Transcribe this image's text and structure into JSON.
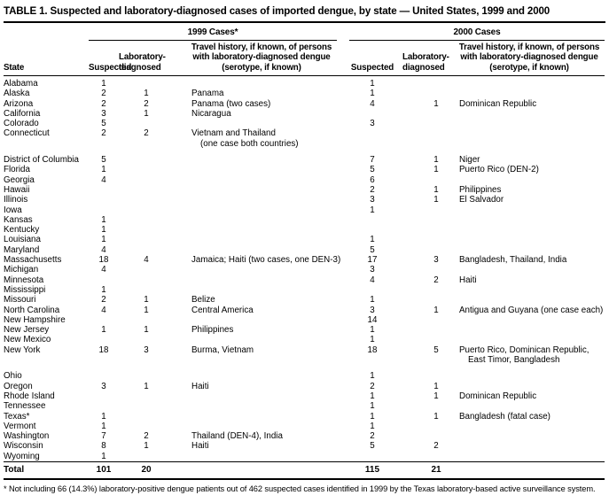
{
  "title": "TABLE 1. Suspected and laboratory-diagnosed cases of imported dengue, by state — United States, 1999 and 2000",
  "table": {
    "group_1999": "1999 Cases*",
    "group_2000": "2000 Cases",
    "col_state": "State",
    "col_suspected": "Suspected",
    "col_lab": "Laboratory-\ndiagnosed",
    "col_travel": "Travel history, if known, of persons\nwith laboratory-diagnosed dengue\n(serotype, if known)",
    "rows": [
      {
        "state": "Alabama",
        "s99": "1",
        "l99": "",
        "t99": "",
        "s00": "1",
        "l00": "",
        "t00": ""
      },
      {
        "state": "Alaska",
        "s99": "2",
        "l99": "1",
        "t99": "Panama",
        "s00": "1",
        "l00": "",
        "t00": ""
      },
      {
        "state": "Arizona",
        "s99": "2",
        "l99": "2",
        "t99": "Panama (two cases)",
        "s00": "4",
        "l00": "1",
        "t00": "Dominican Republic"
      },
      {
        "state": "California",
        "s99": "3",
        "l99": "1",
        "t99": "Nicaragua",
        "s00": "",
        "l00": "",
        "t00": ""
      },
      {
        "state": "Colorado",
        "s99": "5",
        "l99": "",
        "t99": "",
        "s00": "3",
        "l00": "",
        "t00": ""
      },
      {
        "state": "Connecticut",
        "s99": "2",
        "l99": "2",
        "t99": "Vietnam and Thailand\n(one case both countries)",
        "s00": "",
        "l00": "",
        "t00": ""
      },
      {
        "state": "District of Columbia",
        "s99": "5",
        "l99": "",
        "t99": "",
        "s00": "7",
        "l00": "1",
        "t00": "Niger"
      },
      {
        "state": "Florida",
        "s99": "1",
        "l99": "",
        "t99": "",
        "s00": "5",
        "l00": "1",
        "t00": "Puerto Rico (DEN-2)"
      },
      {
        "state": "Georgia",
        "s99": "4",
        "l99": "",
        "t99": "",
        "s00": "6",
        "l00": "",
        "t00": ""
      },
      {
        "state": "Hawaii",
        "s99": "",
        "l99": "",
        "t99": "",
        "s00": "2",
        "l00": "1",
        "t00": "Philippines"
      },
      {
        "state": "Illinois",
        "s99": "",
        "l99": "",
        "t99": "",
        "s00": "3",
        "l00": "1",
        "t00": "El Salvador"
      },
      {
        "state": "Iowa",
        "s99": "",
        "l99": "",
        "t99": "",
        "s00": "1",
        "l00": "",
        "t00": ""
      },
      {
        "state": "Kansas",
        "s99": "1",
        "l99": "",
        "t99": "",
        "s00": "",
        "l00": "",
        "t00": ""
      },
      {
        "state": "Kentucky",
        "s99": "1",
        "l99": "",
        "t99": "",
        "s00": "",
        "l00": "",
        "t00": ""
      },
      {
        "state": "Louisiana",
        "s99": "1",
        "l99": "",
        "t99": "",
        "s00": "1",
        "l00": "",
        "t00": ""
      },
      {
        "state": "Maryland",
        "s99": "4",
        "l99": "",
        "t99": "",
        "s00": "5",
        "l00": "",
        "t00": ""
      },
      {
        "state": "Massachusetts",
        "s99": "18",
        "l99": "4",
        "t99": "Jamaica; Haiti (two cases, one DEN-3)",
        "s00": "17",
        "l00": "3",
        "t00": "Bangladesh, Thailand, India"
      },
      {
        "state": "Michigan",
        "s99": "4",
        "l99": "",
        "t99": "",
        "s00": "3",
        "l00": "",
        "t00": ""
      },
      {
        "state": "Minnesota",
        "s99": "",
        "l99": "",
        "t99": "",
        "s00": "4",
        "l00": "2",
        "t00": "Haiti"
      },
      {
        "state": "Mississippi",
        "s99": "1",
        "l99": "",
        "t99": "",
        "s00": "",
        "l00": "",
        "t00": ""
      },
      {
        "state": "Missouri",
        "s99": "2",
        "l99": "1",
        "t99": "Belize",
        "s00": "1",
        "l00": "",
        "t00": ""
      },
      {
        "state": "North Carolina",
        "s99": "4",
        "l99": "1",
        "t99": "Central America",
        "s00": "3",
        "l00": "1",
        "t00": "Antigua and Guyana (one case each)"
      },
      {
        "state": "New Hampshire",
        "s99": "",
        "l99": "",
        "t99": "",
        "s00": "14",
        "l00": "",
        "t00": ""
      },
      {
        "state": "New Jersey",
        "s99": "1",
        "l99": "1",
        "t99": "Philippines",
        "s00": "1",
        "l00": "",
        "t00": ""
      },
      {
        "state": "New Mexico",
        "s99": "",
        "l99": "",
        "t99": "",
        "s00": "1",
        "l00": "",
        "t00": ""
      },
      {
        "state": "New York",
        "s99": "18",
        "l99": "3",
        "t99": "Burma, Vietnam",
        "s00": "18",
        "l00": "5",
        "t00": "Puerto Rico, Dominican Republic,\nEast Timor, Bangladesh"
      },
      {
        "state": "Ohio",
        "s99": "",
        "l99": "",
        "t99": "",
        "s00": "1",
        "l00": "",
        "t00": ""
      },
      {
        "state": "Oregon",
        "s99": "3",
        "l99": "1",
        "t99": "Haiti",
        "s00": "2",
        "l00": "1",
        "t00": ""
      },
      {
        "state": "Rhode Island",
        "s99": "",
        "l99": "",
        "t99": "",
        "s00": "1",
        "l00": "1",
        "t00": "Dominican Republic"
      },
      {
        "state": "Tennessee",
        "s99": "",
        "l99": "",
        "t99": "",
        "s00": "1",
        "l00": "",
        "t00": ""
      },
      {
        "state": "Texas*",
        "s99": "1",
        "l99": "",
        "t99": "",
        "s00": "1",
        "l00": "1",
        "t00": "Bangladesh (fatal case)"
      },
      {
        "state": "Vermont",
        "s99": "1",
        "l99": "",
        "t99": "",
        "s00": "1",
        "l00": "",
        "t00": ""
      },
      {
        "state": "Washington",
        "s99": "7",
        "l99": "2",
        "t99": "Thailand (DEN-4), India",
        "s00": "2",
        "l00": "",
        "t00": ""
      },
      {
        "state": "Wisconsin",
        "s99": "8",
        "l99": "1",
        "t99": "Haiti",
        "s00": "5",
        "l00": "2",
        "t00": ""
      },
      {
        "state": "Wyoming",
        "s99": "1",
        "l99": "",
        "t99": "",
        "s00": "",
        "l00": "",
        "t00": ""
      }
    ],
    "total": {
      "label": "Total",
      "s99": "101",
      "l99": "20",
      "s00": "115",
      "l00": "21"
    }
  },
  "footnote": "* Not including 66 (14.3%) laboratory-positive dengue patients out of 462 suspected cases identified in 1999 by the Texas laboratory-based active surveillance system."
}
